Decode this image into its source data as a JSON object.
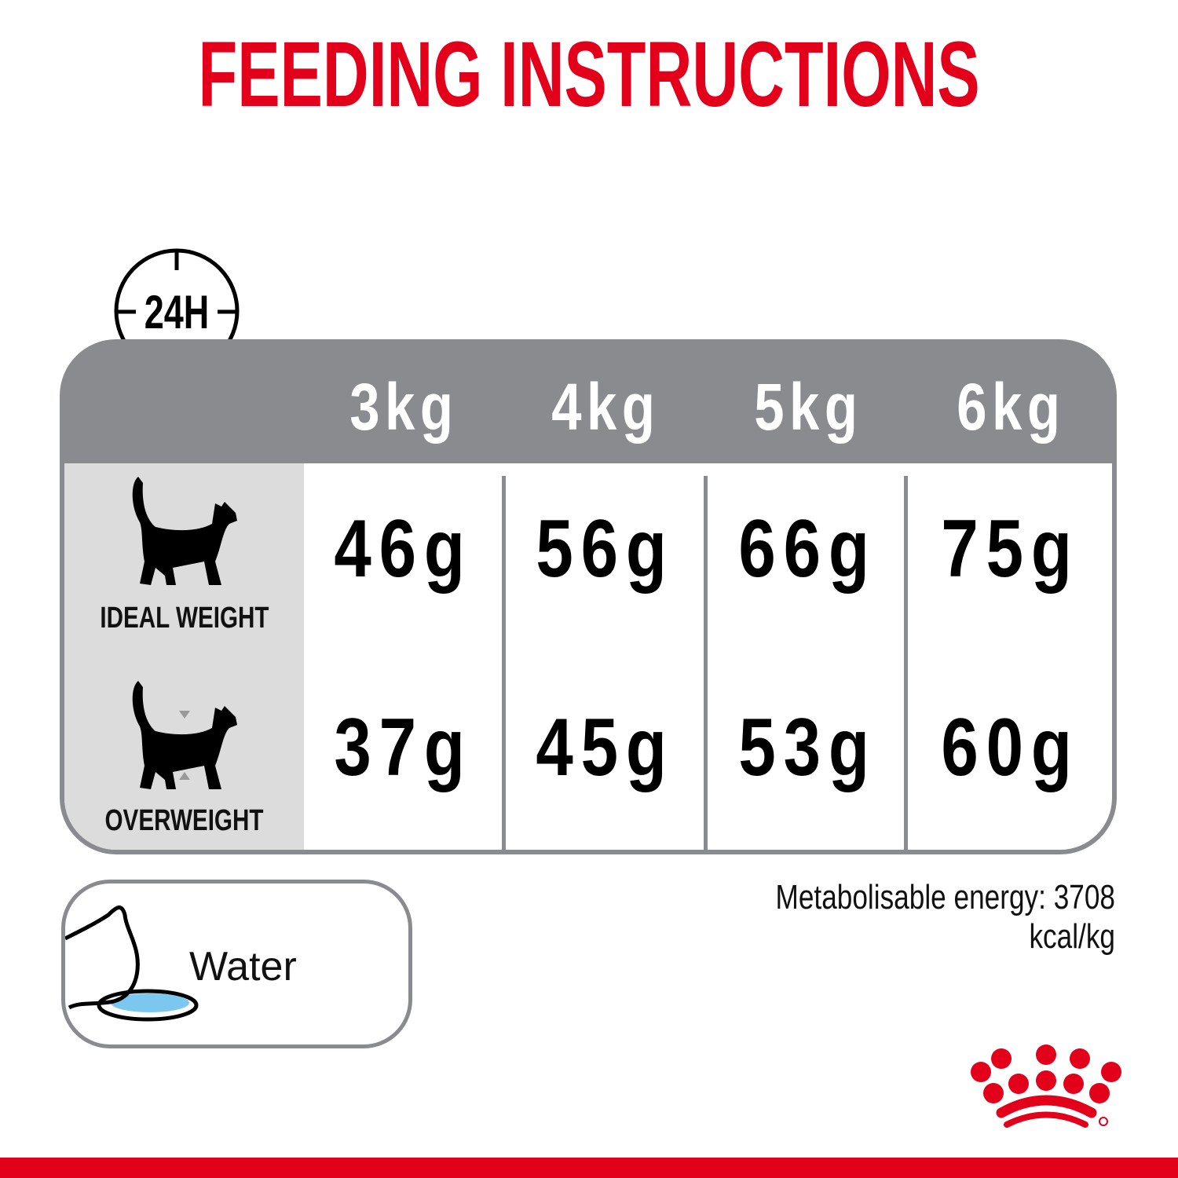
{
  "title": "FEEDING INSTRUCTIONS",
  "clock_label": "24H",
  "columns": [
    "3kg",
    "4kg",
    "5kg",
    "6kg"
  ],
  "rows": [
    {
      "label": "IDEAL WEIGHT",
      "icon": "cat-silhouette-icon",
      "values": [
        "46g",
        "56g",
        "66g",
        "75g"
      ]
    },
    {
      "label": "OVERWEIGHT",
      "icon": "overweight-cat-icon",
      "values": [
        "37g",
        "45g",
        "53g",
        "60g"
      ]
    }
  ],
  "energy": "Metabolisable energy: 3708 kcal/kg",
  "water_label": "Water",
  "logo": "Royal Canin crown",
  "colors": {
    "brand_red": "#e2001a",
    "header_gray": "#8a8b8e",
    "label_gray": "#dcdcdd",
    "water_blue": "#7cc7f0"
  }
}
